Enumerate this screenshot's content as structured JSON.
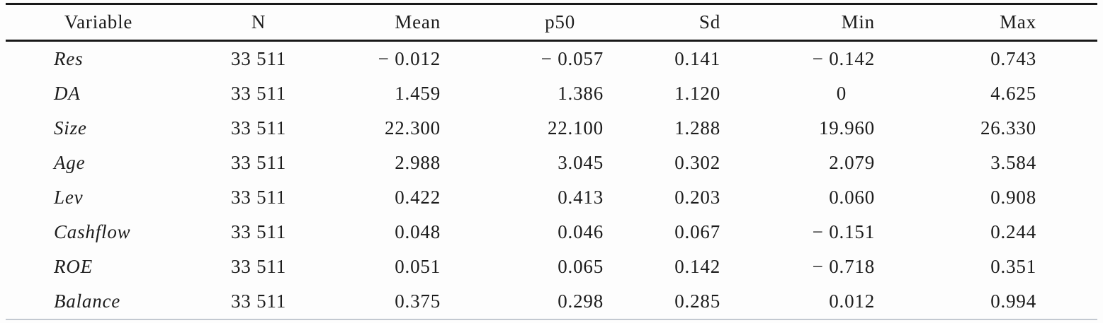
{
  "page": {
    "background": "#fdfdfd",
    "rule_color": "#191919",
    "bottom_rule_color": "#c3c9d1",
    "text_color": "#1c1c1c"
  },
  "table": {
    "title": "summary-statistics",
    "columns": [
      {
        "key": "variable",
        "label": "Variable"
      },
      {
        "key": "n",
        "label": "N"
      },
      {
        "key": "mean",
        "label": "Mean"
      },
      {
        "key": "p50",
        "label": "p50"
      },
      {
        "key": "sd",
        "label": "Sd"
      },
      {
        "key": "min",
        "label": "Min"
      },
      {
        "key": "max",
        "label": "Max"
      }
    ],
    "rows": [
      {
        "variable": "Res",
        "n": "33 511",
        "mean": "− 0.012",
        "p50": "− 0.057",
        "sd": "0.141",
        "min": "− 0.142",
        "max": "0.743"
      },
      {
        "variable": "DA",
        "n": "33 511",
        "mean": "1.459",
        "p50": "1.386",
        "sd": "1.120",
        "min": "0",
        "max": "4.625"
      },
      {
        "variable": "Size",
        "n": "33 511",
        "mean": "22.300",
        "p50": "22.100",
        "sd": "1.288",
        "min": "19.960",
        "max": "26.330"
      },
      {
        "variable": "Age",
        "n": "33 511",
        "mean": "2.988",
        "p50": "3.045",
        "sd": "0.302",
        "min": "2.079",
        "max": "3.584"
      },
      {
        "variable": "Lev",
        "n": "33 511",
        "mean": "0.422",
        "p50": "0.413",
        "sd": "0.203",
        "min": "0.060",
        "max": "0.908"
      },
      {
        "variable": "Cashflow",
        "n": "33 511",
        "mean": "0.048",
        "p50": "0.046",
        "sd": "0.067",
        "min": "− 0.151",
        "max": "0.244"
      },
      {
        "variable": "ROE",
        "n": "33 511",
        "mean": "0.051",
        "p50": "0.065",
        "sd": "0.142",
        "min": "− 0.718",
        "max": "0.351"
      },
      {
        "variable": "Balance",
        "n": "33 511",
        "mean": "0.375",
        "p50": "0.298",
        "sd": "0.285",
        "min": "0.012",
        "max": "0.994"
      }
    ]
  }
}
